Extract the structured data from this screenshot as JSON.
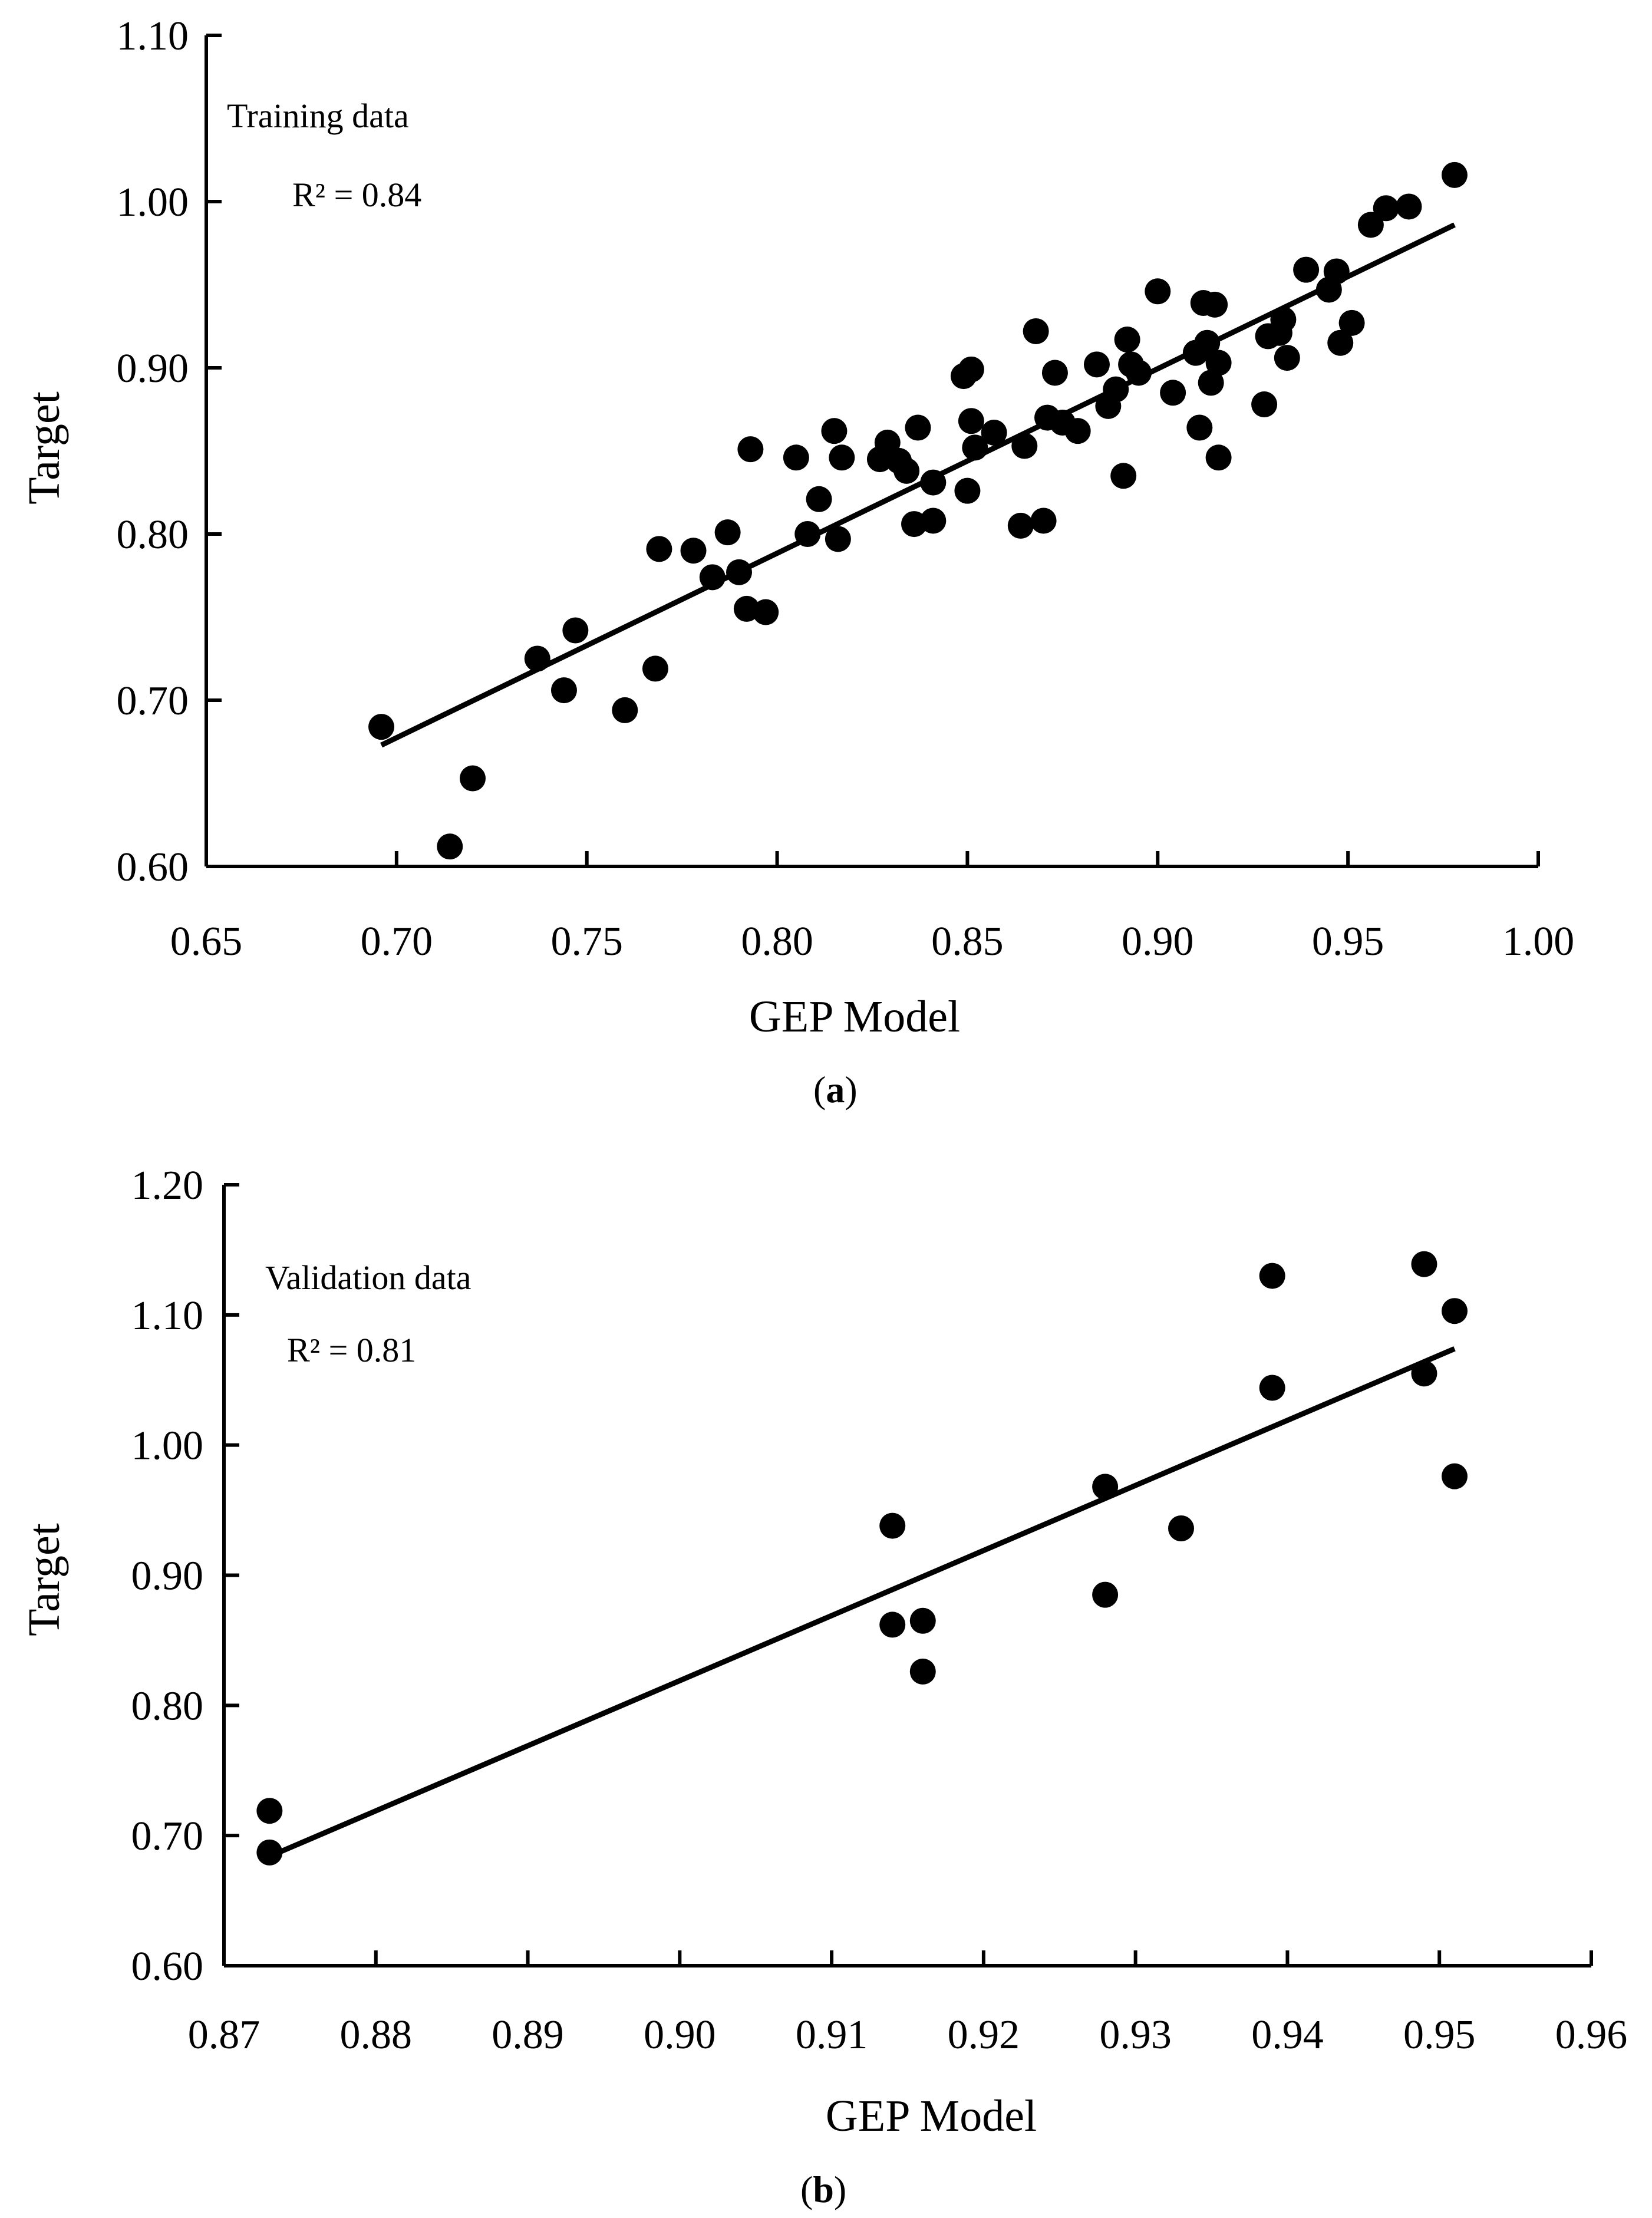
{
  "chart_data": [
    {
      "type": "scatter",
      "panel": "a",
      "caption_label": "a",
      "annotation": "Training data",
      "r2_label": "R² = 0.84",
      "xlabel": "GEP Model",
      "ylabel": "Target",
      "xlim": [
        0.65,
        1.0
      ],
      "ylim": [
        0.6,
        1.1
      ],
      "xticks": [
        0.65,
        0.7,
        0.75,
        0.8,
        0.85,
        0.9,
        0.95,
        1.0
      ],
      "xtick_labels": [
        "0.65",
        "0.70",
        "0.75",
        "0.80",
        "0.85",
        "0.90",
        "0.95",
        "1.00"
      ],
      "yticks": [
        0.6,
        0.7,
        0.8,
        0.9,
        1.0,
        1.1
      ],
      "ytick_labels": [
        "0.60",
        "0.70",
        "0.80",
        "0.90",
        "1.00",
        "1.10"
      ],
      "fit_line": {
        "x": [
          0.696,
          0.978
        ],
        "y": [
          0.673,
          0.986
        ]
      },
      "points": [
        {
          "x": 0.696,
          "y": 0.684
        },
        {
          "x": 0.714,
          "y": 0.612
        },
        {
          "x": 0.72,
          "y": 0.653
        },
        {
          "x": 0.737,
          "y": 0.725
        },
        {
          "x": 0.744,
          "y": 0.706
        },
        {
          "x": 0.747,
          "y": 0.742
        },
        {
          "x": 0.76,
          "y": 0.694
        },
        {
          "x": 0.768,
          "y": 0.719
        },
        {
          "x": 0.769,
          "y": 0.791
        },
        {
          "x": 0.778,
          "y": 0.79
        },
        {
          "x": 0.783,
          "y": 0.774
        },
        {
          "x": 0.787,
          "y": 0.801
        },
        {
          "x": 0.79,
          "y": 0.777
        },
        {
          "x": 0.792,
          "y": 0.755
        },
        {
          "x": 0.793,
          "y": 0.851
        },
        {
          "x": 0.797,
          "y": 0.753
        },
        {
          "x": 0.805,
          "y": 0.846
        },
        {
          "x": 0.808,
          "y": 0.8
        },
        {
          "x": 0.811,
          "y": 0.821
        },
        {
          "x": 0.815,
          "y": 0.862
        },
        {
          "x": 0.816,
          "y": 0.797
        },
        {
          "x": 0.817,
          "y": 0.846
        },
        {
          "x": 0.827,
          "y": 0.845
        },
        {
          "x": 0.829,
          "y": 0.855
        },
        {
          "x": 0.832,
          "y": 0.844
        },
        {
          "x": 0.834,
          "y": 0.838
        },
        {
          "x": 0.836,
          "y": 0.806
        },
        {
          "x": 0.837,
          "y": 0.864
        },
        {
          "x": 0.841,
          "y": 0.831
        },
        {
          "x": 0.841,
          "y": 0.808
        },
        {
          "x": 0.849,
          "y": 0.895
        },
        {
          "x": 0.85,
          "y": 0.826
        },
        {
          "x": 0.851,
          "y": 0.899
        },
        {
          "x": 0.851,
          "y": 0.868
        },
        {
          "x": 0.852,
          "y": 0.852
        },
        {
          "x": 0.857,
          "y": 0.861
        },
        {
          "x": 0.864,
          "y": 0.805
        },
        {
          "x": 0.865,
          "y": 0.853
        },
        {
          "x": 0.868,
          "y": 0.922
        },
        {
          "x": 0.87,
          "y": 0.808
        },
        {
          "x": 0.871,
          "y": 0.87
        },
        {
          "x": 0.873,
          "y": 0.897
        },
        {
          "x": 0.875,
          "y": 0.867
        },
        {
          "x": 0.879,
          "y": 0.862
        },
        {
          "x": 0.884,
          "y": 0.902
        },
        {
          "x": 0.887,
          "y": 0.877
        },
        {
          "x": 0.889,
          "y": 0.887
        },
        {
          "x": 0.891,
          "y": 0.835
        },
        {
          "x": 0.892,
          "y": 0.917
        },
        {
          "x": 0.893,
          "y": 0.902
        },
        {
          "x": 0.895,
          "y": 0.897
        },
        {
          "x": 0.9,
          "y": 0.946
        },
        {
          "x": 0.904,
          "y": 0.885
        },
        {
          "x": 0.91,
          "y": 0.909
        },
        {
          "x": 0.911,
          "y": 0.864
        },
        {
          "x": 0.912,
          "y": 0.939
        },
        {
          "x": 0.913,
          "y": 0.915
        },
        {
          "x": 0.914,
          "y": 0.891
        },
        {
          "x": 0.915,
          "y": 0.938
        },
        {
          "x": 0.916,
          "y": 0.903
        },
        {
          "x": 0.916,
          "y": 0.846
        },
        {
          "x": 0.928,
          "y": 0.878
        },
        {
          "x": 0.929,
          "y": 0.919
        },
        {
          "x": 0.932,
          "y": 0.921
        },
        {
          "x": 0.933,
          "y": 0.929
        },
        {
          "x": 0.934,
          "y": 0.906
        },
        {
          "x": 0.939,
          "y": 0.959
        },
        {
          "x": 0.945,
          "y": 0.947
        },
        {
          "x": 0.947,
          "y": 0.958
        },
        {
          "x": 0.948,
          "y": 0.915
        },
        {
          "x": 0.951,
          "y": 0.927
        },
        {
          "x": 0.956,
          "y": 0.986
        },
        {
          "x": 0.96,
          "y": 0.996
        },
        {
          "x": 0.966,
          "y": 0.997
        },
        {
          "x": 0.978,
          "y": 1.016
        }
      ]
    },
    {
      "type": "scatter",
      "panel": "b",
      "caption_label": "b",
      "annotation": "Validation data",
      "r2_label": "R² = 0.81",
      "xlabel": "GEP Model",
      "ylabel": "Target",
      "xlim": [
        0.87,
        0.96
      ],
      "ylim": [
        0.6,
        1.2
      ],
      "xticks": [
        0.87,
        0.88,
        0.89,
        0.9,
        0.91,
        0.92,
        0.93,
        0.94,
        0.95,
        0.96
      ],
      "xtick_labels": [
        "0.87",
        "0.88",
        "0.89",
        "0.90",
        "0.91",
        "0.92",
        "0.93",
        "0.94",
        "0.95",
        "0.96"
      ],
      "yticks": [
        0.6,
        0.7,
        0.8,
        0.9,
        1.0,
        1.1,
        1.2
      ],
      "ytick_labels": [
        "0.60",
        "0.70",
        "0.80",
        "0.90",
        "1.00",
        "1.10",
        "1.20"
      ],
      "fit_line": {
        "x": [
          0.873,
          0.951
        ],
        "y": [
          0.684,
          1.074
        ]
      },
      "points": [
        {
          "x": 0.873,
          "y": 0.719
        },
        {
          "x": 0.873,
          "y": 0.687
        },
        {
          "x": 0.914,
          "y": 0.938
        },
        {
          "x": 0.914,
          "y": 0.862
        },
        {
          "x": 0.916,
          "y": 0.865
        },
        {
          "x": 0.916,
          "y": 0.826
        },
        {
          "x": 0.928,
          "y": 0.968
        },
        {
          "x": 0.928,
          "y": 0.885
        },
        {
          "x": 0.933,
          "y": 0.936
        },
        {
          "x": 0.939,
          "y": 1.13
        },
        {
          "x": 0.939,
          "y": 1.044
        },
        {
          "x": 0.949,
          "y": 1.139
        },
        {
          "x": 0.949,
          "y": 1.055
        },
        {
          "x": 0.951,
          "y": 1.103
        },
        {
          "x": 0.951,
          "y": 0.976
        }
      ]
    }
  ]
}
